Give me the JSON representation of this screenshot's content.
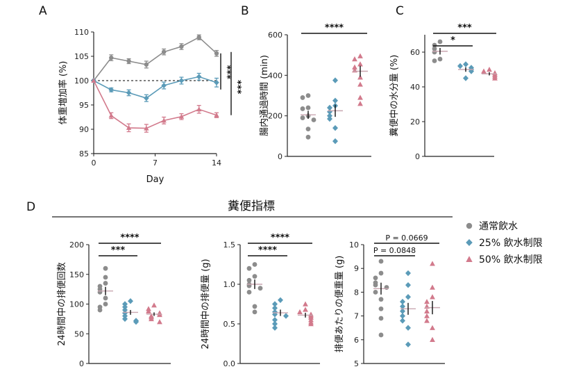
{
  "colors": {
    "control": "#8c8c8c",
    "r25": "#5b9bb8",
    "r50": "#d27a8c",
    "axis": "#222222"
  },
  "section_title": "糞便指標",
  "legend": [
    {
      "label": "通常飲水",
      "color": "#8c8c8c",
      "shape": "circle"
    },
    {
      "label": "25% 飲水制限",
      "color": "#5b9bb8",
      "shape": "diamond"
    },
    {
      "label": "50% 飲水制限",
      "color": "#d27a8c",
      "shape": "triangle"
    }
  ],
  "chart_data": [
    {
      "panel": "A",
      "type": "line",
      "ylabel": "体重増加率 (%)",
      "xlabel": "Day",
      "ylim": [
        85,
        110
      ],
      "yticks": [
        "85",
        "90",
        "95",
        "100",
        "105",
        "110"
      ],
      "xlim": [
        0,
        14
      ],
      "xticks": [
        "0",
        "7",
        "14"
      ],
      "x": [
        0,
        2,
        4,
        6,
        8,
        10,
        12,
        14
      ],
      "baseline": 100,
      "series": [
        {
          "name": "通常飲水",
          "values": [
            100,
            104.7,
            104.0,
            103.3,
            105.9,
            107.0,
            108.9,
            105.6
          ],
          "errors": [
            0,
            0.6,
            0.5,
            0.7,
            0.6,
            0.6,
            0.5,
            0.6
          ]
        },
        {
          "name": "25% 飲水制限",
          "values": [
            100,
            98.1,
            97.5,
            96.4,
            99.0,
            100.0,
            100.8,
            99.6
          ],
          "errors": [
            0,
            0.4,
            0.6,
            0.7,
            0.7,
            0.7,
            0.7,
            0.9
          ]
        },
        {
          "name": "50% 飲水制限",
          "values": [
            100,
            92.8,
            90.3,
            90.2,
            91.8,
            92.6,
            94.1,
            92.9
          ],
          "errors": [
            0,
            0.6,
            0.8,
            0.8,
            0.7,
            0.6,
            0.8,
            0.5
          ]
        }
      ],
      "significance": [
        "***",
        "***"
      ]
    },
    {
      "panel": "B",
      "type": "scatter",
      "ylabel": "腸内通過時間 (min)",
      "ylim": [
        0,
        600
      ],
      "yticks": [
        "0",
        "200",
        "400",
        "600"
      ],
      "groups": [
        {
          "name": "通常飲水",
          "values": [
            300,
            290,
            240,
            235,
            200,
            190,
            180,
            135,
            95
          ],
          "mean": 205,
          "sem": 20
        },
        {
          "name": "25% 飲水制限",
          "values": [
            375,
            275,
            250,
            240,
            220,
            200,
            185,
            140,
            75
          ],
          "mean": 225,
          "sem": 30
        },
        {
          "name": "50% 飲水制限",
          "values": [
            495,
            480,
            455,
            440,
            425,
            390,
            355,
            290,
            260
          ],
          "mean": 420,
          "sem": 27
        }
      ],
      "comparisons": [
        {
          "from": 0,
          "to": 2,
          "label": "****"
        }
      ]
    },
    {
      "panel": "C",
      "type": "scatter",
      "ylabel": "糞便中の水分量 (%)",
      "ylim": [
        0,
        70
      ],
      "yticks": [
        "0",
        "20",
        "40",
        "60"
      ],
      "groups": [
        {
          "name": "通常飲水",
          "values": [
            66,
            64,
            62,
            60,
            56,
            55
          ],
          "mean": 60.5,
          "sem": 1.9
        },
        {
          "name": "25% 飲水制限",
          "values": [
            53,
            52,
            51,
            50,
            49,
            45
          ],
          "mean": 50,
          "sem": 1.3
        },
        {
          "name": "50% 飲水制限",
          "values": [
            50,
            49,
            48,
            47,
            46,
            45
          ],
          "mean": 47.5,
          "sem": 0.9
        }
      ],
      "comparisons": [
        {
          "from": 0,
          "to": 1,
          "label": "*"
        },
        {
          "from": 0,
          "to": 2,
          "label": "***"
        }
      ]
    },
    {
      "panel": "D1",
      "type": "scatter",
      "ylabel": "24時間中の排便回数",
      "ylim": [
        0,
        200
      ],
      "yticks": [
        "0",
        "50",
        "100",
        "150",
        "200"
      ],
      "groups": [
        {
          "name": "通常飲水",
          "values": [
            160,
            145,
            135,
            130,
            125,
            120,
            110,
            100,
            95,
            90
          ],
          "mean": 122,
          "sem": 7
        },
        {
          "name": "25% 飲水制限",
          "values": [
            105,
            100,
            95,
            90,
            85,
            80,
            75,
            72,
            70
          ],
          "mean": 86,
          "sem": 4
        },
        {
          "name": "50% 飲水制限",
          "values": [
            98,
            92,
            88,
            85,
            82,
            80,
            78,
            75,
            70
          ],
          "mean": 83,
          "sem": 3
        }
      ],
      "comparisons": [
        {
          "from": 0,
          "to": 1,
          "label": "***"
        },
        {
          "from": 0,
          "to": 2,
          "label": "****"
        }
      ]
    },
    {
      "panel": "D2",
      "type": "scatter",
      "ylabel": "24時間中の排便量 (g)",
      "ylim": [
        0,
        1.5
      ],
      "yticks": [
        "0.0",
        "0.5",
        "1.0",
        "1.5"
      ],
      "groups": [
        {
          "name": "通常飲水",
          "values": [
            1.25,
            1.2,
            1.1,
            1.05,
            1.0,
            0.98,
            0.95,
            0.9,
            0.72,
            0.65
          ],
          "mean": 1.0,
          "sem": 0.06
        },
        {
          "name": "25% 飲水制限",
          "values": [
            0.8,
            0.75,
            0.7,
            0.65,
            0.62,
            0.6,
            0.55,
            0.5,
            0.45
          ],
          "mean": 0.64,
          "sem": 0.04
        },
        {
          "name": "50% 飲水制限",
          "values": [
            0.75,
            0.68,
            0.65,
            0.62,
            0.6,
            0.58,
            0.55,
            0.52,
            0.5
          ],
          "mean": 0.61,
          "sem": 0.03
        }
      ],
      "comparisons": [
        {
          "from": 0,
          "to": 1,
          "label": "****"
        },
        {
          "from": 0,
          "to": 2,
          "label": "****"
        }
      ]
    },
    {
      "panel": "D3",
      "type": "scatter",
      "ylabel": "排便あたりの便重量 (g)",
      "ylim": [
        5,
        10
      ],
      "yticks": [
        "5",
        "6",
        "7",
        "8",
        "9",
        "10"
      ],
      "groups": [
        {
          "name": "通常飲水",
          "values": [
            9.3,
            8.8,
            8.6,
            8.4,
            8.3,
            8.2,
            8.0,
            7.7,
            7.3,
            6.9,
            6.2
          ],
          "mean": 8.15,
          "sem": 0.25
        },
        {
          "name": "25% 飲水制限",
          "values": [
            8.8,
            8.3,
            7.8,
            7.6,
            7.4,
            7.2,
            7.0,
            6.8,
            6.5,
            5.8
          ],
          "mean": 7.3,
          "sem": 0.25
        },
        {
          "name": "50% 飲水制限",
          "values": [
            9.2,
            8.2,
            7.8,
            7.6,
            7.4,
            7.2,
            7.0,
            6.8,
            6.5,
            6.0
          ],
          "mean": 7.35,
          "sem": 0.28
        }
      ],
      "comparisons": [
        {
          "from": 0,
          "to": 1,
          "label": "P = 0.0848"
        },
        {
          "from": 0,
          "to": 2,
          "label": "P = 0.0669"
        }
      ]
    }
  ]
}
